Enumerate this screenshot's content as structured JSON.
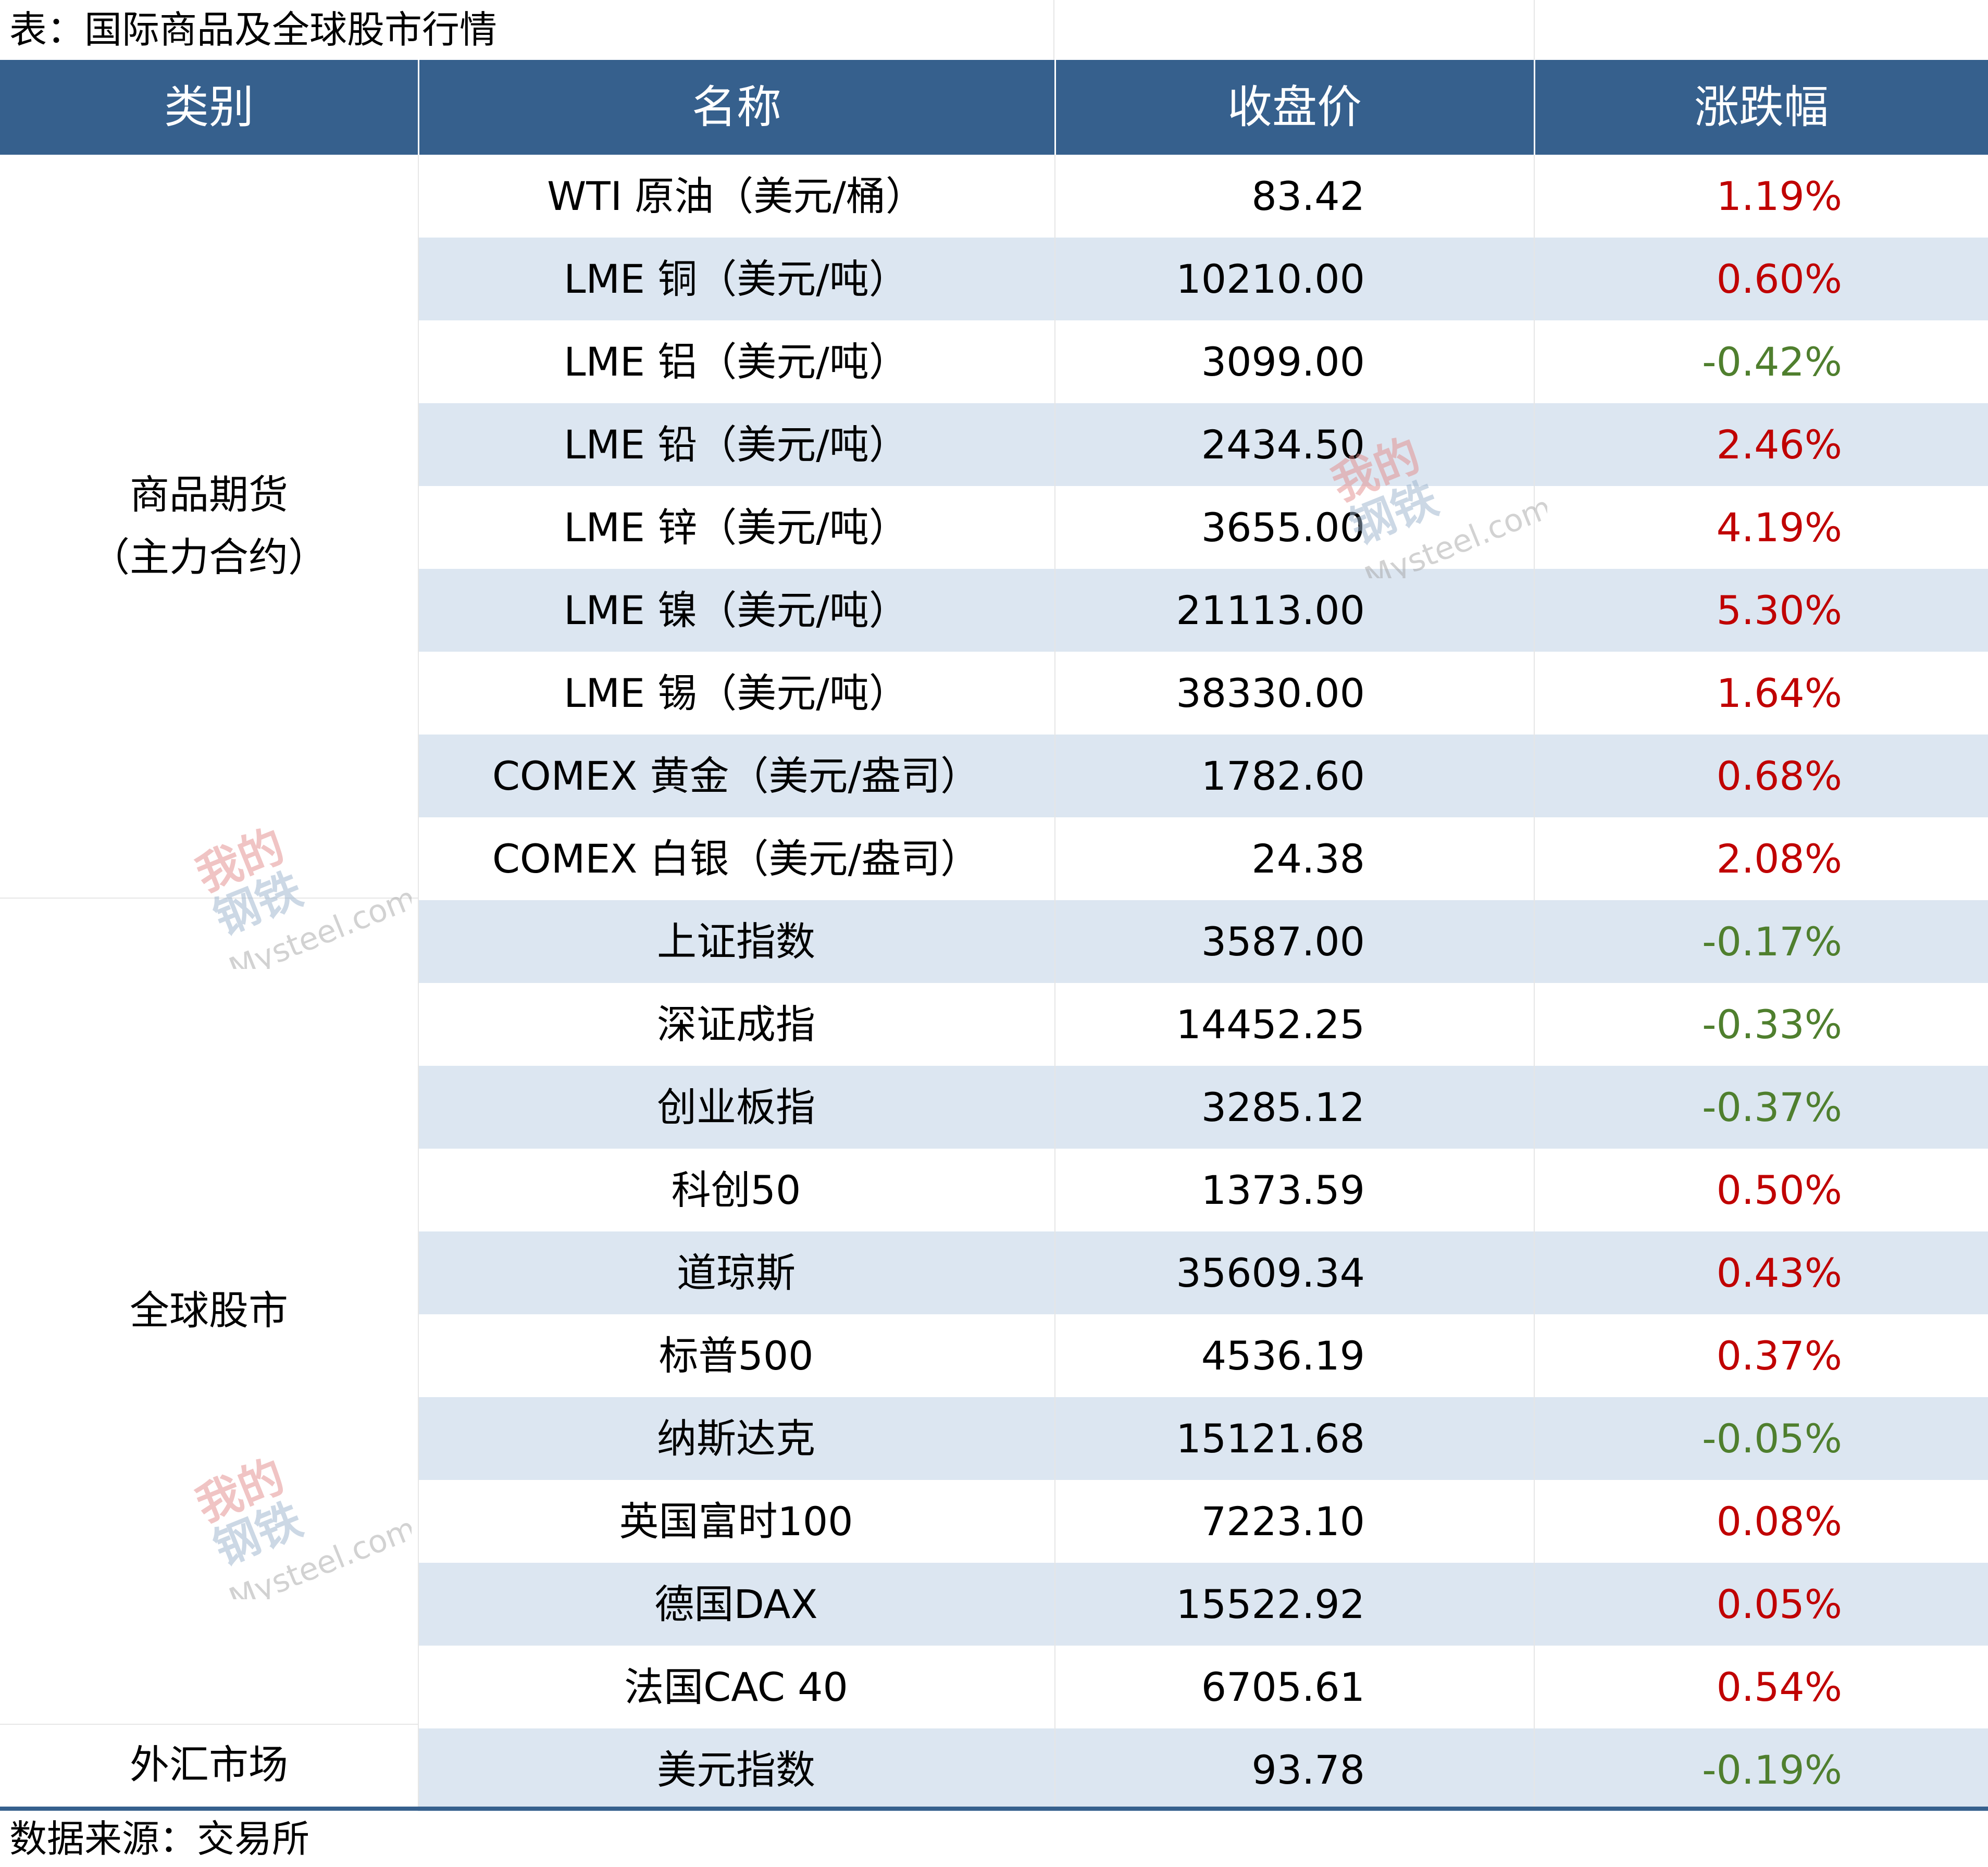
{
  "title": "表：国际商品及全球股市行情",
  "header": {
    "category": "类别",
    "name": "名称",
    "close": "收盘价",
    "change": "涨跌幅"
  },
  "categories": {
    "commodities_line1": "商品期货",
    "commodities_line2": "（主力合约）",
    "stocks": "全球股市",
    "fx": "外汇市场"
  },
  "rows": [
    {
      "name": "WTI 原油（美元/桶）",
      "close": "83.42",
      "change": "1.19%",
      "dir": "up"
    },
    {
      "name": "LME 铜（美元/吨）",
      "close": "10210.00",
      "change": "0.60%",
      "dir": "up"
    },
    {
      "name": "LME 铝（美元/吨）",
      "close": "3099.00",
      "change": "-0.42%",
      "dir": "down"
    },
    {
      "name": "LME 铅（美元/吨）",
      "close": "2434.50",
      "change": "2.46%",
      "dir": "up"
    },
    {
      "name": "LME 锌（美元/吨）",
      "close": "3655.00",
      "change": "4.19%",
      "dir": "up"
    },
    {
      "name": "LME 镍（美元/吨）",
      "close": "21113.00",
      "change": "5.30%",
      "dir": "up"
    },
    {
      "name": "LME 锡（美元/吨）",
      "close": "38330.00",
      "change": "1.64%",
      "dir": "up"
    },
    {
      "name": "COMEX 黄金（美元/盎司）",
      "close": "1782.60",
      "change": "0.68%",
      "dir": "up"
    },
    {
      "name": "COMEX 白银（美元/盎司）",
      "close": "24.38",
      "change": "2.08%",
      "dir": "up"
    },
    {
      "name": "上证指数",
      "close": "3587.00",
      "change": "-0.17%",
      "dir": "down"
    },
    {
      "name": "深证成指",
      "close": "14452.25",
      "change": "-0.33%",
      "dir": "down"
    },
    {
      "name": "创业板指",
      "close": "3285.12",
      "change": "-0.37%",
      "dir": "down"
    },
    {
      "name": "科创50",
      "close": "1373.59",
      "change": "0.50%",
      "dir": "up"
    },
    {
      "name": "道琼斯",
      "close": "35609.34",
      "change": "0.43%",
      "dir": "up"
    },
    {
      "name": "标普500",
      "close": "4536.19",
      "change": "0.37%",
      "dir": "up"
    },
    {
      "name": "纳斯达克",
      "close": "15121.68",
      "change": "-0.05%",
      "dir": "down"
    },
    {
      "name": "英国富时100",
      "close": "7223.10",
      "change": "0.08%",
      "dir": "up"
    },
    {
      "name": "德国DAX",
      "close": "15522.92",
      "change": "0.05%",
      "dir": "up"
    },
    {
      "name": "法国CAC 40",
      "close": "6705.61",
      "change": "0.54%",
      "dir": "up"
    },
    {
      "name": "美元指数",
      "close": "93.78",
      "change": "-0.19%",
      "dir": "down"
    }
  ],
  "source": "数据来源：交易所",
  "colors": {
    "header_bg": "#36608d",
    "alt_row": "#dce6f1",
    "up": "#c00000",
    "down": "#4f7f2e"
  },
  "watermark": {
    "line1": "我的",
    "line2": "钢铁",
    "line3": "Mysteel.com"
  }
}
